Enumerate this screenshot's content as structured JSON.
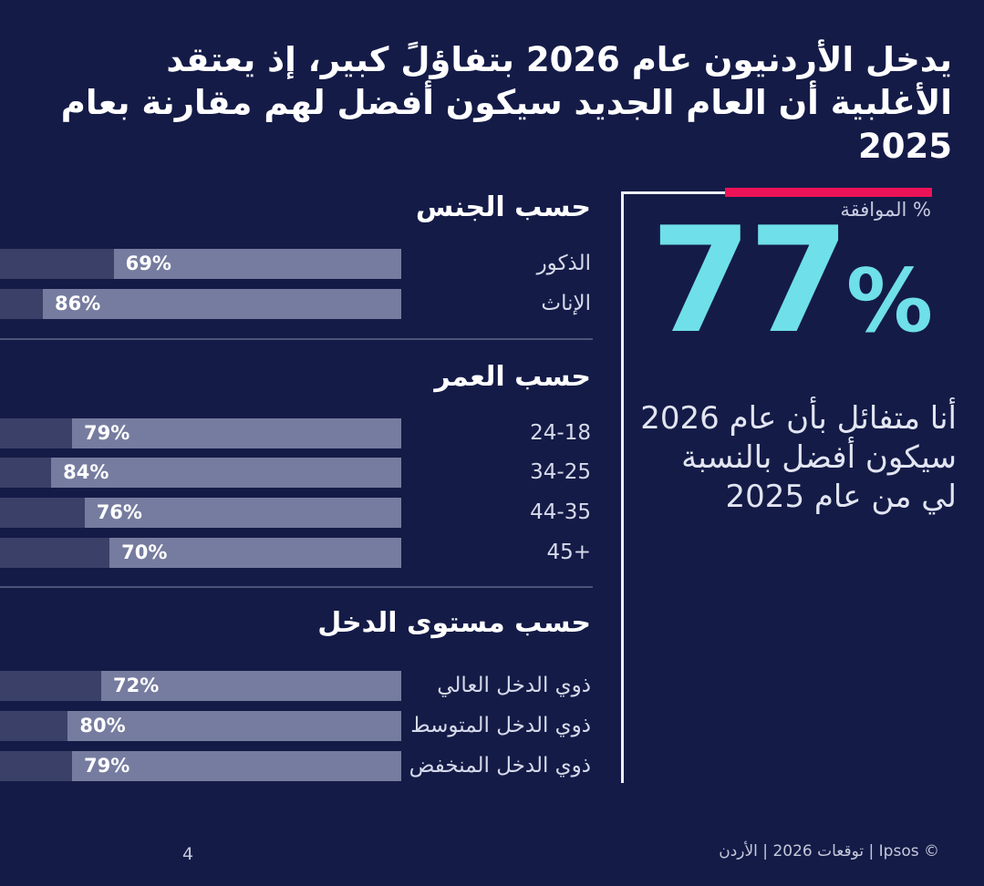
{
  "title": "يدخل الأردنيون عام 2026 بتفاؤلً كبير، إذ يعتقد الأغلبية أن العام الجديد سيكون أفضل لهم مقارنة بعام 2025",
  "chart_data": {
    "type": "bar",
    "orientation": "horizontal",
    "unit": "%",
    "xlim": [
      0,
      100
    ],
    "grid": false,
    "legend": "none",
    "groups": [
      {
        "title": "حسب الجنس",
        "rows": [
          {
            "label": "الذكور",
            "value": 69
          },
          {
            "label": "الإناث",
            "value": 86
          }
        ]
      },
      {
        "title": "حسب العمر",
        "rows": [
          {
            "label": "24-18",
            "value": 79
          },
          {
            "label": "34-25",
            "value": 84
          },
          {
            "label": "44-35",
            "value": 76
          },
          {
            "label": "45+",
            "value": 70
          }
        ]
      },
      {
        "title": "حسب مستوى الدخل",
        "rows": [
          {
            "label": "ذوي الدخل العالي",
            "value": 72
          },
          {
            "label": "ذوي الدخل المتوسط",
            "value": 80
          },
          {
            "label": "ذوي الدخل المنخفض",
            "value": 79
          }
        ]
      }
    ]
  },
  "highlight": {
    "axis_label": "% الموافقة",
    "value": "77",
    "percent_sign": "%",
    "statement": "أنا متفائل بأن عام 2026 سيكون أفضل بالنسبة لي من عام 2025"
  },
  "footer": {
    "copyright": "© Ipsos | توقعات 2026 | الأردن",
    "page_number": "4"
  },
  "colors": {
    "background": "#141b47",
    "bar_fill": "#767c9f",
    "bar_track": "#3a4067",
    "accent_cyan": "#6fdfe9",
    "accent_red": "#ed1356",
    "divider": "#4e5478",
    "text_primary": "#ffffff",
    "text_muted": "#d6daea"
  }
}
